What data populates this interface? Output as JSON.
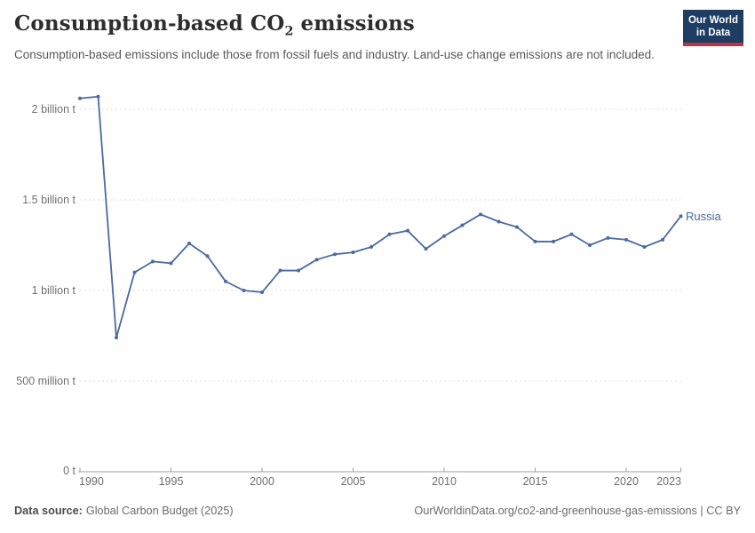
{
  "header": {
    "title_pre": "Consumption-based CO",
    "title_sub": "2",
    "title_post": " emissions",
    "subtitle": "Consumption-based emissions include those from fossil fuels and industry. Land-use change emissions are not included.",
    "logo": {
      "line1": "Our World",
      "line2": "in Data"
    }
  },
  "chart": {
    "series_label": "Russia",
    "y_tick_labels": [
      "2 billion t",
      "1.5 billion t",
      "1 billion t",
      "500 million t",
      "0 t"
    ],
    "x_tick_labels": [
      "1990",
      "1995",
      "2000",
      "2005",
      "2010",
      "2015",
      "2020",
      "2023"
    ]
  },
  "chart_data": {
    "type": "line",
    "title": "Consumption-based CO₂ emissions",
    "entity": "Russia",
    "unit": "tonnes of CO₂",
    "x": [
      1990,
      1991,
      1992,
      1993,
      1994,
      1995,
      1996,
      1997,
      1998,
      1999,
      2000,
      2001,
      2002,
      2003,
      2004,
      2005,
      2006,
      2007,
      2008,
      2009,
      2010,
      2011,
      2012,
      2013,
      2014,
      2015,
      2016,
      2017,
      2018,
      2019,
      2020,
      2021,
      2022,
      2023
    ],
    "values_billion_tonnes": [
      2.06,
      2.07,
      0.74,
      1.1,
      1.16,
      1.15,
      1.26,
      1.19,
      1.05,
      1.0,
      0.99,
      1.11,
      1.11,
      1.17,
      1.2,
      1.21,
      1.24,
      1.31,
      1.33,
      1.23,
      1.3,
      1.36,
      1.42,
      1.38,
      1.35,
      1.27,
      1.27,
      1.31,
      1.25,
      1.29,
      1.28,
      1.24,
      1.28,
      1.41
    ],
    "y_gridlines_billion": [
      0.5,
      1,
      1.5,
      2
    ],
    "x_ticks": [
      1990,
      1995,
      2000,
      2005,
      2010,
      2015,
      2020,
      2023
    ],
    "ylim": [
      0,
      2.15
    ],
    "xlim": [
      1990,
      2023
    ],
    "grid": "dashed horizontal",
    "legend_position": "end-of-line label",
    "marker": "point"
  },
  "theme": {
    "line_color": "#4b69a2",
    "grid_color": "#dcdcdc",
    "axis_color": "#9e9e9e",
    "tick_label_color": "#6f6f6f",
    "logo_bg": "#1d3d63",
    "logo_red": "#c0323c"
  },
  "footer": {
    "data_source_label": "Data source:",
    "data_source_value": "Global Carbon Budget (2025)",
    "attribution": "OurWorldinData.org/co2-and-greenhouse-gas-emissions | CC BY"
  }
}
